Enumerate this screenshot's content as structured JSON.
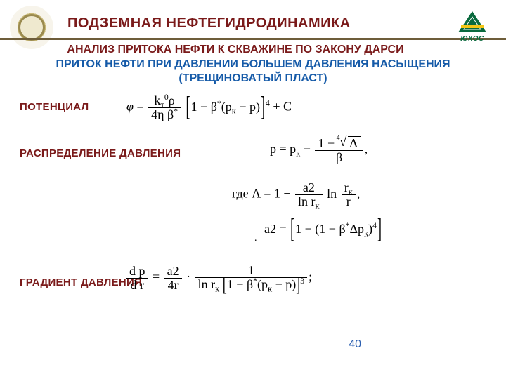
{
  "brand": {
    "word": "ЮКОС",
    "triangle_color": "#0a6a3e",
    "stripe_color": "#f3c515"
  },
  "colors": {
    "title": "#7a1a1a",
    "subtitle_blue": "#155aa8",
    "rule": "#6e5d3a",
    "text": "#000000",
    "pagenum": "#2b5fb0",
    "background": "#ffffff"
  },
  "fonts": {
    "heading_family": "Arial",
    "heading_weight": "bold",
    "title_size_pt": 20,
    "subtitle_size_pt": 16,
    "label_size_pt": 15,
    "equation_family": "Times New Roman",
    "equation_size_pt": 18
  },
  "header": {
    "title": "ПОДЗЕМНАЯ  НЕФТЕГИДРОДИНАМИКА",
    "subtitle1": "АНАЛИЗ ПРИТОКА НЕФТИ К СКВАЖИНЕ ПО ЗАКОНУ ДАРСИ",
    "subtitle2": "ПРИТОК НЕФТИ ПРИ ДАВЛЕНИИ БОЛЬШЕМ ДАВЛЕНИЯ НАСЫЩЕНИЯ (ТРЕЩИНОВАТЫЙ ПЛАСТ)"
  },
  "labels": {
    "potential": "ПОТЕНЦИАЛ",
    "pressure_dist": "РАСПРЕДЕЛЕНИЕ ДАВЛЕНИЯ",
    "pressure_grad": "ГРАДИЕНТ ДАВЛЕНИЯ"
  },
  "equations": {
    "eq1": {
      "lhs": "φ",
      "frac_num_html": "k<sub>т</sub><sup>0</sup>ρ",
      "frac_den_html": "4η&nbsp;β<sup>*</sup>",
      "bracket_html": "1 − β<sup>*</sup>(p<sub>к</sub> − p)",
      "bracket_power": "4",
      "tail": "+ C"
    },
    "eq2": {
      "lhs_html": "p = p<sub>к</sub> −",
      "frac_num_inner_html": "Λ",
      "frac_den_html": "β",
      "tail": ","
    },
    "eq3": {
      "prefix": "где ",
      "body_html": "Λ = 1 −",
      "frac_num": "a2",
      "frac_den_html": "ln <span class=\"bar\">r</span><sub>к</sub>",
      "rhs_html": "ln <span class=\"frac\"><span class=\"n\">r<sub>к</sub></span><span class=\"d\">r</span></span>",
      "tail": ","
    },
    "eq4": {
      "lhs": "a2 =",
      "bracket_html": "1 − (1 − β<sup>*</sup>Δp<sub>к</sub>)<sup>4</sup>"
    },
    "eq5": {
      "lhs_num": "d p",
      "lhs_den": "d r",
      "mid_num": "a2",
      "mid_den": "4r",
      "rhs_top": "1",
      "rhs_den_html": "ln <span class=\"bar\">r</span><sub>к</sub> <span class=\"midbr\">[</span>1 − β<sup>*</sup>(p<sub>к</sub> − p)<span class=\"midbr\">]</span><sup>3</sup>",
      "tail": ";"
    }
  },
  "page_number": "40"
}
